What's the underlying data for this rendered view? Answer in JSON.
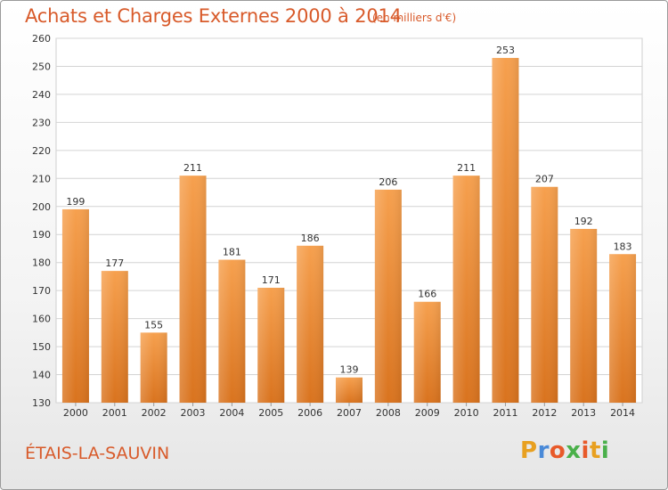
{
  "header": {
    "title": "Achats et Charges Externes 2000 à 2014",
    "subtitle": "(en milliers d'€)"
  },
  "footer": {
    "commune": "ÉTAIS-LA-SAUVIN",
    "logo": {
      "letters": [
        "P",
        "r",
        "o",
        "x",
        "i",
        "t",
        "i"
      ],
      "colors": [
        "#e8a020",
        "#4a8ad8",
        "#e85a2a",
        "#4ab04a",
        "#e85a2a",
        "#e8a020",
        "#4ab04a"
      ]
    }
  },
  "chart_data": {
    "type": "bar",
    "categories": [
      "2000",
      "2001",
      "2002",
      "2003",
      "2004",
      "2005",
      "2006",
      "2007",
      "2008",
      "2009",
      "2010",
      "2011",
      "2012",
      "2013",
      "2014"
    ],
    "values": [
      199,
      177,
      155,
      211,
      181,
      171,
      186,
      139,
      206,
      166,
      211,
      253,
      207,
      192,
      183
    ],
    "ylim": [
      130,
      260
    ],
    "yticks": [
      130,
      140,
      150,
      160,
      170,
      180,
      190,
      200,
      210,
      220,
      230,
      240,
      250,
      260
    ],
    "grid": true,
    "bar_color": "#f0913a",
    "title": "Achats et Charges Externes 2000 à 2014",
    "xlabel": "",
    "ylabel": ""
  }
}
